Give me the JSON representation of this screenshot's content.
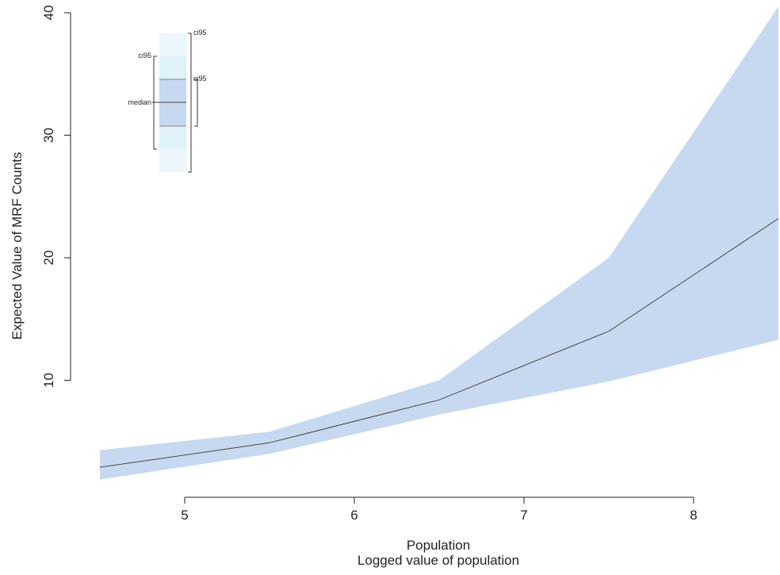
{
  "chart_data": {
    "type": "area",
    "title": "",
    "xlabel": "Population",
    "xlabel2": "Logged value of population",
    "ylabel": "Expected Value of MRF Counts",
    "xlim": [
      4.5,
      8.5
    ],
    "ylim": [
      0,
      40
    ],
    "x_ticks": [
      5,
      6,
      7,
      8
    ],
    "y_ticks": [
      10,
      20,
      30,
      40
    ],
    "grid": false,
    "band_color": "#c6d9f0",
    "line_color": "#4a4a4a",
    "x": [
      4.5,
      5.5,
      6.5,
      7.5,
      8.5
    ],
    "median": [
      2.9,
      4.9,
      8.4,
      14.0,
      23.2
    ],
    "lower": [
      1.9,
      4.0,
      7.2,
      9.9,
      13.3
    ],
    "upper": [
      4.3,
      5.8,
      10.0,
      20.0,
      40.5
    ],
    "legend": {
      "placement": "top-left",
      "labels": {
        "outer_left": "ci95",
        "median": "median",
        "outer_right": "ci95",
        "inner_right": "ci95"
      }
    }
  }
}
